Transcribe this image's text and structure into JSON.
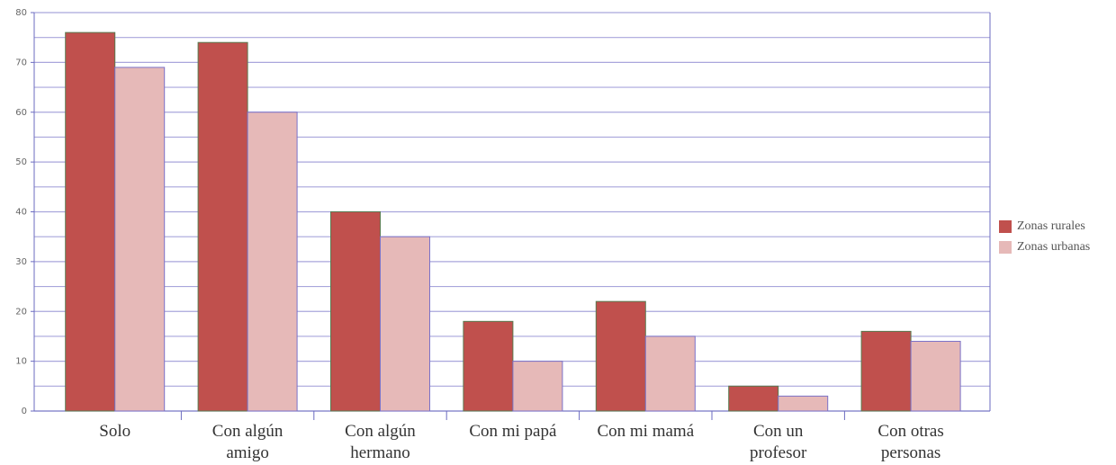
{
  "chart_data": {
    "type": "bar",
    "categories": [
      "Solo",
      "Con algún\namigo",
      "Con algún\nhermano",
      "Con mi papá",
      "Con mi mamá",
      "Con un\nprofesor",
      "Con otras\npersonas"
    ],
    "series": [
      {
        "name": "Zonas rurales",
        "color": "#c0504d",
        "values": [
          76,
          74,
          40,
          18,
          22,
          5,
          16
        ]
      },
      {
        "name": "Zonas urbanas",
        "color": "#e6b9b8",
        "values": [
          69,
          60,
          35,
          10,
          15,
          3,
          14
        ]
      }
    ],
    "ylim": [
      0,
      80
    ],
    "yticks": [
      0,
      10,
      20,
      30,
      40,
      50,
      60,
      70,
      80
    ],
    "y_minor_ticks": [
      5,
      15,
      25,
      35,
      45,
      55,
      65,
      75
    ],
    "grid": true,
    "legend": "right"
  }
}
